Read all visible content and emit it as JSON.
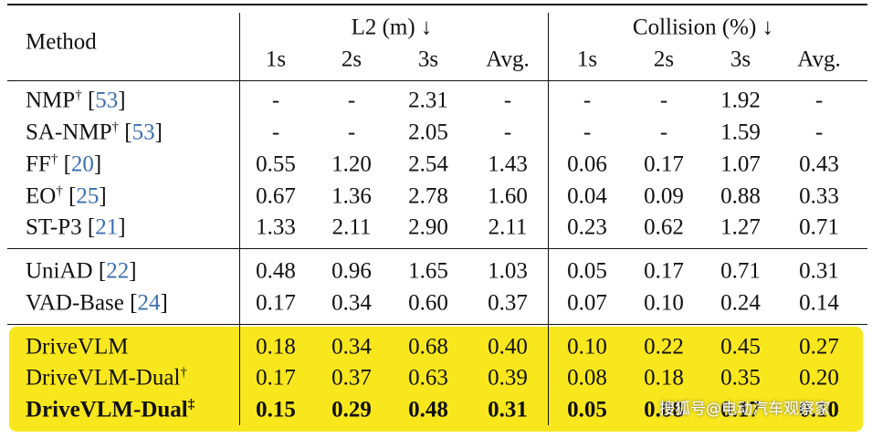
{
  "table": {
    "method_header": "Method",
    "groups": [
      "L2 (m) ↓",
      "Collision (%) ↓"
    ],
    "columns": [
      "1s",
      "2s",
      "3s",
      "Avg.",
      "1s",
      "2s",
      "3s",
      "Avg."
    ],
    "sections": [
      {
        "highlight": false,
        "rows": [
          {
            "method": "NMP",
            "sup": "†",
            "cite": [
              "[",
              "53",
              "]"
            ],
            "values": [
              "-",
              "-",
              "2.31",
              "-",
              "-",
              "-",
              "1.92",
              "-"
            ]
          },
          {
            "method": "SA-NMP",
            "sup": "†",
            "cite": [
              "[",
              "53",
              "]"
            ],
            "values": [
              "-",
              "-",
              "2.05",
              "-",
              "-",
              "-",
              "1.59",
              "-"
            ]
          },
          {
            "method": "FF",
            "sup": "†",
            "cite": [
              "[",
              "20",
              "]"
            ],
            "values": [
              "0.55",
              "1.20",
              "2.54",
              "1.43",
              "0.06",
              "0.17",
              "1.07",
              "0.43"
            ]
          },
          {
            "method": "EO",
            "sup": "†",
            "cite": [
              "[",
              "25",
              "]"
            ],
            "values": [
              "0.67",
              "1.36",
              "2.78",
              "1.60",
              "0.04",
              "0.09",
              "0.88",
              "0.33"
            ]
          },
          {
            "method": "ST-P3",
            "cite": [
              "[",
              "21",
              "]"
            ],
            "values": [
              "1.33",
              "2.11",
              "2.90",
              "2.11",
              "0.23",
              "0.62",
              "1.27",
              "0.71"
            ]
          }
        ]
      },
      {
        "highlight": false,
        "rows": [
          {
            "method": "UniAD",
            "cite": [
              "[",
              "22",
              "]"
            ],
            "values": [
              "0.48",
              "0.96",
              "1.65",
              "1.03",
              "0.05",
              "0.17",
              "0.71",
              "0.31"
            ]
          },
          {
            "method": "VAD-Base",
            "cite": [
              "[",
              "24",
              "]"
            ],
            "values": [
              "0.17",
              "0.34",
              "0.60",
              "0.37",
              "0.07",
              "0.10",
              "0.24",
              "0.14"
            ]
          }
        ]
      },
      {
        "highlight": true,
        "rows": [
          {
            "method": "DriveVLM",
            "values": [
              "0.18",
              "0.34",
              "0.68",
              "0.40",
              "0.10",
              "0.22",
              "0.45",
              "0.27"
            ]
          },
          {
            "method": "DriveVLM-Dual",
            "sup": "†",
            "values": [
              "0.17",
              "0.37",
              "0.63",
              "0.39",
              "0.08",
              "0.18",
              "0.35",
              "0.20"
            ]
          },
          {
            "method": "DriveVLM-Dual",
            "sup": "‡",
            "bold": true,
            "values": [
              "0.15",
              "0.29",
              "0.48",
              "0.31",
              "0.05",
              "0.08",
              "0.17",
              "0.10"
            ]
          }
        ]
      }
    ],
    "watermark": "搜狐号@电动汽车观察家"
  }
}
